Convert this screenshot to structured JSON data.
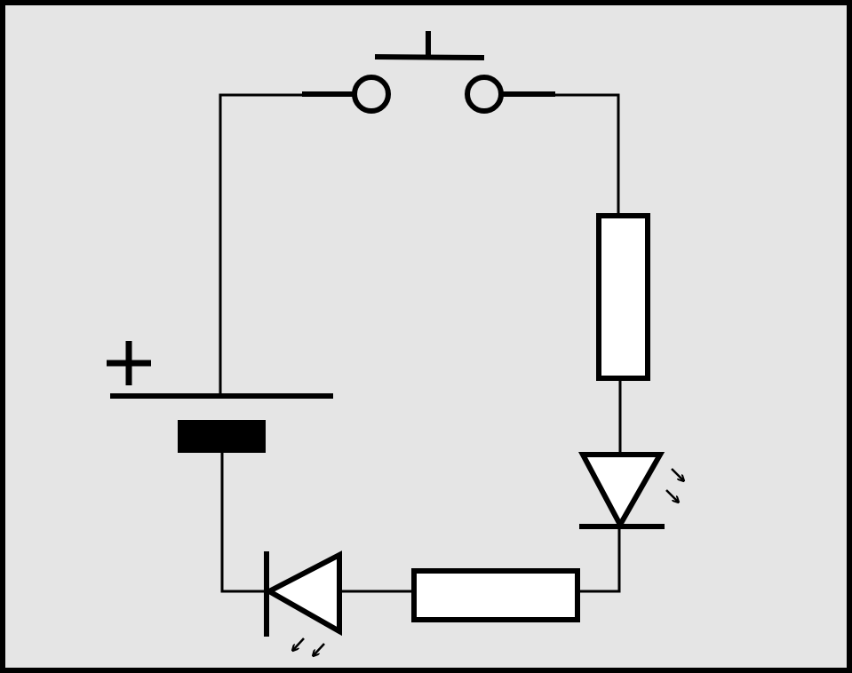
{
  "diagram": {
    "type": "circuit-schematic",
    "background_color": "#e5e5e5",
    "frame_color": "#000000",
    "wire_color": "#000000",
    "component_fill": "#ffffff",
    "components": [
      {
        "id": "battery",
        "kind": "battery",
        "label": "+",
        "polarity_marked": true
      },
      {
        "id": "push-button",
        "kind": "push-button-switch",
        "state": "open"
      },
      {
        "id": "resistor-1",
        "kind": "resistor",
        "orientation": "vertical"
      },
      {
        "id": "led",
        "kind": "light-emitting-diode"
      },
      {
        "id": "resistor-2",
        "kind": "resistor",
        "orientation": "horizontal"
      },
      {
        "id": "photodiode",
        "kind": "photodiode"
      }
    ],
    "connections": [
      [
        "battery",
        "push-button"
      ],
      [
        "push-button",
        "resistor-1"
      ],
      [
        "resistor-1",
        "led"
      ],
      [
        "led",
        "resistor-2"
      ],
      [
        "resistor-2",
        "photodiode"
      ],
      [
        "photodiode",
        "battery"
      ]
    ]
  }
}
